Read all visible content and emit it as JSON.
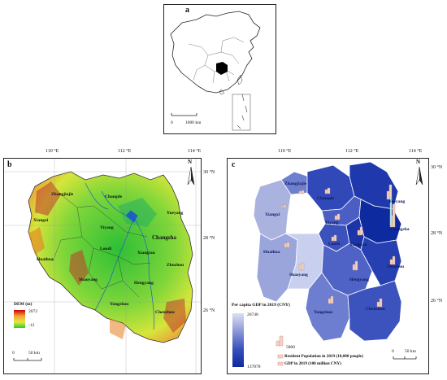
{
  "panel_a": {
    "letter": "a",
    "scale_zero": "0",
    "scale_label": "1000 km"
  },
  "panel_b": {
    "letter": "b",
    "lon_ticks": [
      "110 °E",
      "112 °E",
      "114 °E"
    ],
    "lat_ticks": [
      "30 °N",
      "28 °N",
      "26 °N"
    ],
    "north": "N",
    "cities": [
      "Zhangjiajie",
      "Xiangxi",
      "Huaihua",
      "Changde",
      "Yiyang",
      "Yueyang",
      "Changsha",
      "Loudi",
      "Xiangtan",
      "Zhuzhou",
      "Shaoyang",
      "Hengyang",
      "Yongzhou",
      "Chenzhou"
    ],
    "legend_title": "DEM (m)",
    "legend_max": "2072",
    "legend_min": "-12",
    "scale_zero": "0",
    "scale_label": "50 km"
  },
  "panel_c": {
    "letter": "c",
    "lon_ticks": [
      "110 °E",
      "112 °E",
      "114 °E"
    ],
    "lat_ticks": [
      "30 °N",
      "28 °N",
      "26 °N"
    ],
    "north": "N",
    "cities": [
      "Zhangjiajie",
      "Xiangxi",
      "Huaihua",
      "Changde",
      "Yiyang",
      "Yueyang",
      "Changsha",
      "Loudi",
      "Xiangtan",
      "Zhuzhou",
      "Shaoyang",
      "Hengyang",
      "Yongzhou",
      "Chenzhou"
    ],
    "legend_title": "Per capita GDP in 2019 (CNY)",
    "legend_max": "26748",
    "legend_min": "137878",
    "bar_ref": "5800",
    "legend_population": "Resident Population in 2019 (10,000 people)",
    "legend_gdp": "GDP in 2019 (100 million CNY)",
    "scale_zero": "0",
    "scale_label": "50 km"
  },
  "colors": {
    "choropleth_light": "#dcdff3",
    "choropleth_dark": "#0d2a9e",
    "dem_high": "#d10000",
    "dem_low": "#2ecc2e"
  }
}
